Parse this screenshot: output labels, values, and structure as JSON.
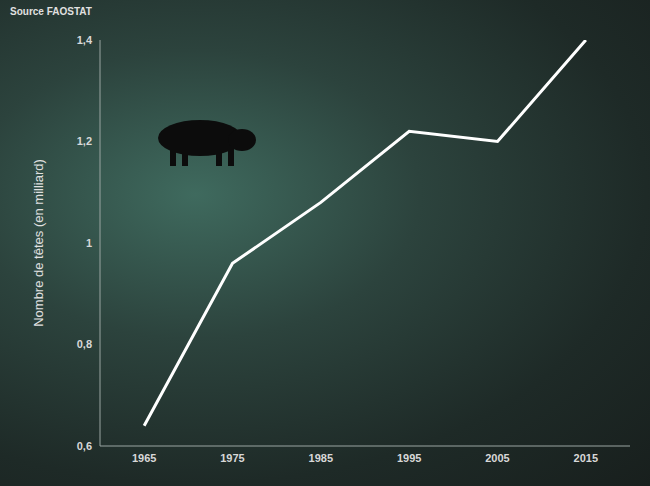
{
  "chart_data": {
    "type": "line",
    "annotations": [
      "Source FAOSTAT"
    ],
    "y_label": "Nombre de têtes (en milliard)",
    "x": [
      1965,
      1975,
      1985,
      1995,
      2005,
      2015
    ],
    "values": [
      0.64,
      0.96,
      1.08,
      1.22,
      1.2,
      1.4
    ],
    "color": "#ffffff",
    "marker": "none",
    "xlim": [
      1960,
      2020
    ],
    "xticks": [
      1965,
      1975,
      1985,
      1995,
      2005,
      2015
    ],
    "ylim": [
      0.6,
      1.4
    ],
    "yticks": [
      {
        "value": 0.6,
        "label": "0,6"
      },
      {
        "value": 0.8,
        "label": "0,8"
      },
      1,
      {
        "value": 1.2,
        "label": "1,2"
      },
      {
        "value": 1.4,
        "label": "1,4"
      }
    ],
    "grid": false
  }
}
